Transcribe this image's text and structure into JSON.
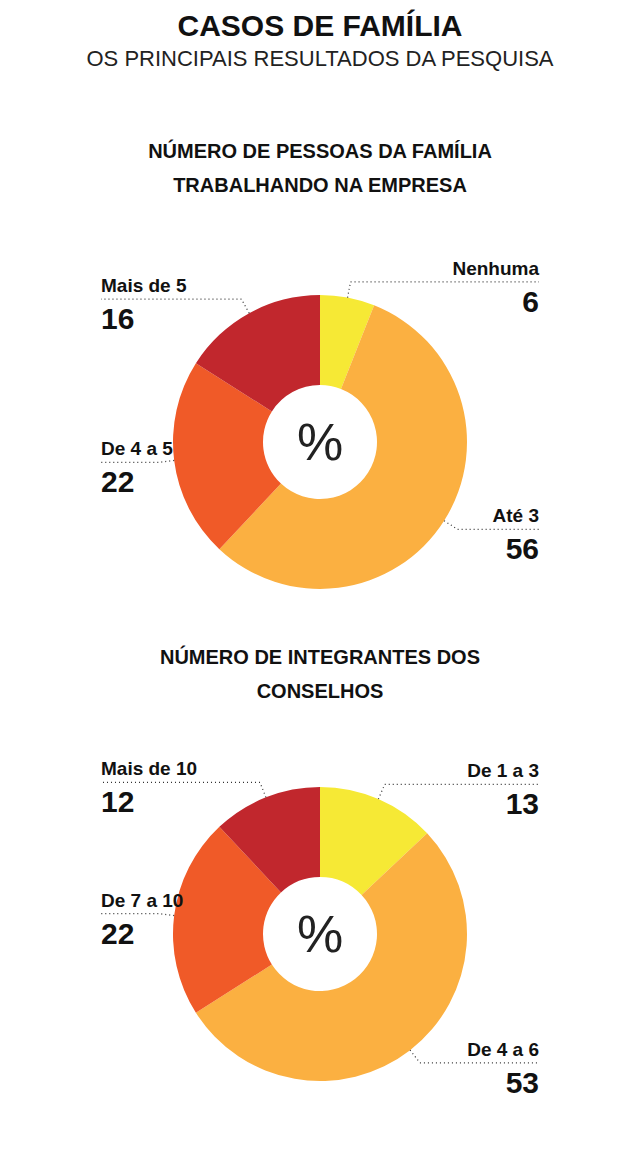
{
  "title": "CASOS DE FAMÍLIA",
  "subtitle": "OS PRINCIPAIS RESULTADOS DA PESQUISA",
  "chart_data": [
    {
      "type": "pie",
      "title": "NÚMERO DE PESSOAS DA FAMÍLIA TRABALHANDO NA EMPRESA",
      "annotation": "%",
      "categories": [
        "Nenhuma",
        "Até 3",
        "De 4 a 5",
        "Mais de 5"
      ],
      "values": [
        6,
        56,
        22,
        16
      ],
      "colors": [
        "#f6e935",
        "#fbb041",
        "#f05a28",
        "#c1272d"
      ],
      "data_labels": true
    },
    {
      "type": "pie",
      "title": "NÚMERO DE INTEGRANTES DOS CONSELHOS",
      "annotation": "%",
      "categories": [
        "De 1 a 3",
        "De 4 a 6",
        "De 7 a 10",
        "Mais de 10"
      ],
      "values": [
        13,
        53,
        22,
        12
      ],
      "colors": [
        "#f6e935",
        "#fbb041",
        "#f05a28",
        "#c1272d"
      ],
      "data_labels": true
    }
  ]
}
